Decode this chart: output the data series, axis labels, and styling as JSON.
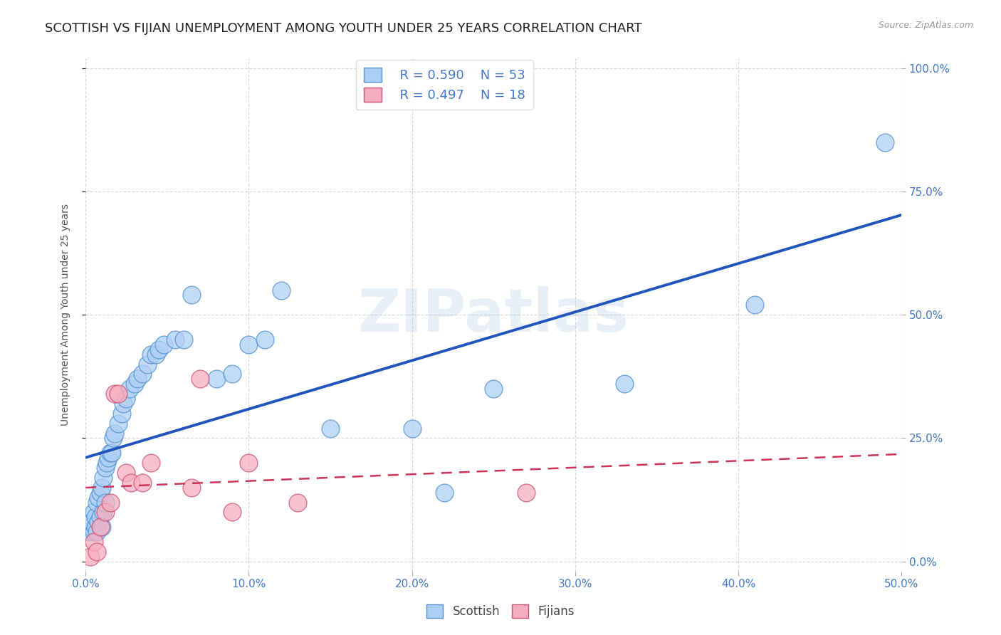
{
  "title": "SCOTTISH VS FIJIAN UNEMPLOYMENT AMONG YOUTH UNDER 25 YEARS CORRELATION CHART",
  "source": "Source: ZipAtlas.com",
  "xlim": [
    0.0,
    0.5
  ],
  "ylim": [
    -0.02,
    1.02
  ],
  "x_tick_vals": [
    0.0,
    0.1,
    0.2,
    0.3,
    0.4,
    0.5
  ],
  "x_tick_labels": [
    "0.0%",
    "10.0%",
    "20.0%",
    "30.0%",
    "40.0%",
    "50.0%"
  ],
  "y_tick_vals": [
    0.0,
    0.25,
    0.5,
    0.75,
    1.0
  ],
  "y_tick_labels": [
    "0.0%",
    "25.0%",
    "50.0%",
    "75.0%",
    "100.0%"
  ],
  "watermark": "ZIPatlas",
  "legend_r_scottish": "R = 0.590",
  "legend_n_scottish": "N = 53",
  "legend_r_fijian": "R = 0.497",
  "legend_n_fijian": "N = 18",
  "scottish_color": "#aecff5",
  "fijian_color": "#f5aec0",
  "scottish_edge_color": "#5090d0",
  "fijian_edge_color": "#d05070",
  "scottish_line_color": "#2255bb",
  "fijian_line_color": "#cc3355",
  "grid_color": "#cccccc",
  "bg_color": "#ffffff",
  "title_color": "#222222",
  "axis_tick_color": "#4477cc",
  "ylabel_color": "#555555",
  "source_color": "#999999",
  "title_fontsize": 13,
  "tick_fontsize": 11,
  "ylabel_fontsize": 10,
  "legend_fontsize": 13,
  "scottish_x": [
    0.002,
    0.003,
    0.004,
    0.005,
    0.005,
    0.006,
    0.006,
    0.007,
    0.007,
    0.008,
    0.008,
    0.009,
    0.009,
    0.01,
    0.01,
    0.011,
    0.011,
    0.012,
    0.012,
    0.013,
    0.014,
    0.015,
    0.016,
    0.017,
    0.018,
    0.02,
    0.022,
    0.023,
    0.025,
    0.027,
    0.03,
    0.032,
    0.035,
    0.038,
    0.04,
    0.043,
    0.045,
    0.048,
    0.055,
    0.06,
    0.065,
    0.08,
    0.09,
    0.1,
    0.11,
    0.12,
    0.15,
    0.2,
    0.22,
    0.25,
    0.33,
    0.41,
    0.49
  ],
  "scottish_y": [
    0.06,
    0.07,
    0.08,
    0.06,
    0.1,
    0.07,
    0.09,
    0.06,
    0.12,
    0.08,
    0.13,
    0.09,
    0.14,
    0.07,
    0.15,
    0.1,
    0.17,
    0.12,
    0.19,
    0.2,
    0.21,
    0.22,
    0.22,
    0.25,
    0.26,
    0.28,
    0.3,
    0.32,
    0.33,
    0.35,
    0.36,
    0.37,
    0.38,
    0.4,
    0.42,
    0.42,
    0.43,
    0.44,
    0.45,
    0.45,
    0.54,
    0.37,
    0.38,
    0.44,
    0.45,
    0.55,
    0.27,
    0.27,
    0.14,
    0.35,
    0.36,
    0.52,
    0.85
  ],
  "fijian_x": [
    0.003,
    0.005,
    0.007,
    0.009,
    0.012,
    0.015,
    0.018,
    0.02,
    0.025,
    0.028,
    0.035,
    0.04,
    0.065,
    0.07,
    0.09,
    0.1,
    0.13,
    0.27
  ],
  "fijian_y": [
    0.01,
    0.04,
    0.02,
    0.07,
    0.1,
    0.12,
    0.34,
    0.34,
    0.18,
    0.16,
    0.16,
    0.2,
    0.15,
    0.37,
    0.1,
    0.2,
    0.12,
    0.14
  ]
}
